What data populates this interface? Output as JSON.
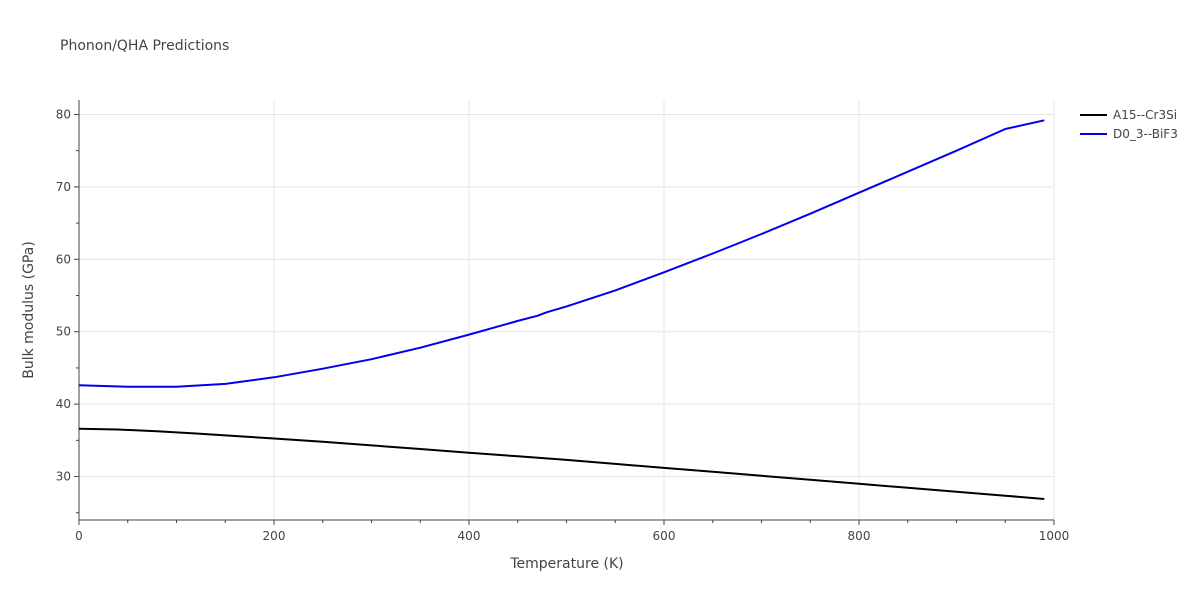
{
  "chart_data": {
    "type": "line",
    "title": "Phonon/QHA Predictions",
    "xlabel": "Temperature (K)",
    "ylabel": "Bulk modulus (GPa)",
    "xlim": [
      0,
      1000
    ],
    "ylim": [
      24,
      82
    ],
    "xticks": [
      0,
      200,
      400,
      600,
      800,
      1000
    ],
    "yticks": [
      30,
      40,
      50,
      60,
      70,
      80
    ],
    "grid": true,
    "legend_position": "top-right",
    "series": [
      {
        "name": "A15--Cr3Si",
        "color": "#000000",
        "x": [
          0,
          40,
          80,
          120,
          160,
          200,
          250,
          300,
          350,
          400,
          450,
          500,
          550,
          600,
          650,
          700,
          750,
          800,
          850,
          900,
          950,
          990
        ],
        "y": [
          36.6,
          36.5,
          36.25,
          35.95,
          35.6,
          35.25,
          34.8,
          34.3,
          33.8,
          33.3,
          32.8,
          32.3,
          31.75,
          31.2,
          30.65,
          30.1,
          29.55,
          29.0,
          28.45,
          27.9,
          27.35,
          26.9
        ]
      },
      {
        "name": "D0_3--BiF3",
        "color": "#0000ee",
        "x": [
          0,
          50,
          100,
          150,
          200,
          250,
          300,
          350,
          400,
          450,
          470,
          480,
          500,
          550,
          600,
          650,
          700,
          750,
          800,
          850,
          900,
          950,
          990
        ],
        "y": [
          42.6,
          42.4,
          42.4,
          42.8,
          43.7,
          44.9,
          46.2,
          47.8,
          49.6,
          51.5,
          52.2,
          52.7,
          53.5,
          55.7,
          58.2,
          60.8,
          63.5,
          66.3,
          69.2,
          72.1,
          75.0,
          78.0,
          79.2
        ]
      }
    ]
  }
}
